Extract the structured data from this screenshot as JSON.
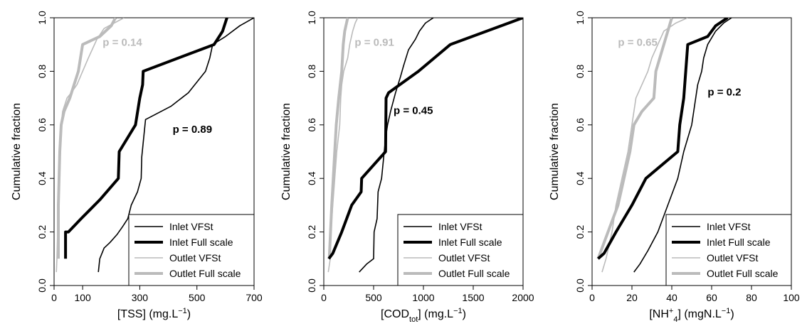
{
  "chart_data": [
    {
      "type": "line",
      "xlabel": "[TSS] (mg.L",
      "xlabel_sup": "−1",
      "xlabel_close": ")",
      "ylabel": "Cumulative fraction",
      "xlim": [
        0,
        700
      ],
      "ylim": [
        0,
        1
      ],
      "xticks": [
        "0",
        "100",
        "300",
        "500",
        "700"
      ],
      "xtick_values": [
        0,
        100,
        300,
        500,
        700
      ],
      "yticks": [
        "0.0",
        "0.2",
        "0.4",
        "0.6",
        "0.8",
        "1.0"
      ],
      "ytick_values": [
        0,
        0.2,
        0.4,
        0.6,
        0.8,
        1.0
      ],
      "legend_position": "bottom-right",
      "series": [
        {
          "name": "Inlet VFSt",
          "color": "#000000",
          "style": "thin",
          "x": [
            155,
            160,
            175,
            195,
            220,
            240,
            258,
            270,
            292,
            305,
            307,
            320,
            410,
            470,
            530,
            545,
            555,
            600,
            650,
            700
          ],
          "y": [
            0.05,
            0.1,
            0.14,
            0.16,
            0.19,
            0.22,
            0.25,
            0.3,
            0.35,
            0.4,
            0.48,
            0.62,
            0.67,
            0.72,
            0.8,
            0.85,
            0.9,
            0.93,
            0.97,
            1.0
          ]
        },
        {
          "name": "Inlet Full scale",
          "color": "#000000",
          "style": "thick",
          "x": [
            40,
            40,
            50,
            95,
            160,
            225,
            228,
            285,
            300,
            310,
            312,
            560,
            590,
            605
          ],
          "y": [
            0.1,
            0.2,
            0.2,
            0.25,
            0.32,
            0.4,
            0.5,
            0.6,
            0.7,
            0.75,
            0.8,
            0.9,
            0.95,
            1.0
          ]
        },
        {
          "name": "Outlet VFSt",
          "color": "#bbbbbb",
          "style": "thin",
          "x": [
            8,
            10,
            15,
            18,
            22,
            25,
            30,
            45,
            60,
            80,
            100,
            120,
            150,
            175,
            210,
            245
          ],
          "y": [
            0.05,
            0.1,
            0.3,
            0.45,
            0.55,
            0.6,
            0.65,
            0.7,
            0.72,
            0.75,
            0.8,
            0.85,
            0.92,
            0.96,
            0.98,
            1.0
          ]
        },
        {
          "name": "Outlet Full scale",
          "color": "#bbbbbb",
          "style": "thick",
          "x": [
            15,
            15,
            20,
            25,
            35,
            55,
            85,
            100,
            160,
            200,
            215
          ],
          "y": [
            0.1,
            0.3,
            0.5,
            0.6,
            0.65,
            0.7,
            0.8,
            0.9,
            0.93,
            0.97,
            1.0
          ]
        }
      ],
      "annotations": [
        {
          "text": "p = 0.14",
          "x": 170,
          "y": 0.895,
          "color": "#bbbbbb"
        },
        {
          "text": "p = 0.89",
          "x": 415,
          "y": 0.57,
          "color": "#000000"
        }
      ]
    },
    {
      "type": "line",
      "xlabel": "[COD",
      "xlabel_sub": "tot",
      "xlabel_close": "] (mg.L",
      "xlabel_sup": "−1",
      "xlabel_end": ")",
      "ylabel": "Cumulative fraction",
      "xlim": [
        0,
        2000
      ],
      "ylim": [
        0,
        1
      ],
      "xticks": [
        "0",
        "500",
        "1000",
        "1500",
        "2000"
      ],
      "xtick_values": [
        0,
        500,
        1000,
        1500,
        2000
      ],
      "yticks": [
        "0.0",
        "0.2",
        "0.4",
        "0.6",
        "0.8",
        "1.0"
      ],
      "ytick_values": [
        0,
        0.2,
        0.4,
        0.6,
        0.8,
        1.0
      ],
      "legend_position": "bottom-right",
      "series": [
        {
          "name": "Inlet VFSt",
          "color": "#000000",
          "style": "thin",
          "x": [
            355,
            430,
            500,
            505,
            535,
            545,
            580,
            620,
            640,
            670,
            720,
            770,
            800,
            850,
            920,
            960,
            1020,
            1100
          ],
          "y": [
            0.05,
            0.08,
            0.1,
            0.2,
            0.25,
            0.35,
            0.4,
            0.55,
            0.6,
            0.65,
            0.72,
            0.78,
            0.82,
            0.88,
            0.92,
            0.95,
            0.98,
            1.0
          ]
        },
        {
          "name": "Inlet Full scale",
          "color": "#000000",
          "style": "thick",
          "x": [
            50,
            90,
            180,
            280,
            375,
            380,
            620,
            625,
            650,
            950,
            1270,
            2000
          ],
          "y": [
            0.1,
            0.12,
            0.2,
            0.3,
            0.35,
            0.4,
            0.5,
            0.7,
            0.72,
            0.8,
            0.9,
            1.0
          ]
        },
        {
          "name": "Outlet VFSt",
          "color": "#bbbbbb",
          "style": "thin",
          "x": [
            45,
            65,
            70,
            90,
            110,
            130,
            160,
            170,
            180,
            200,
            240,
            260,
            290,
            315,
            340
          ],
          "y": [
            0.05,
            0.1,
            0.2,
            0.3,
            0.4,
            0.5,
            0.6,
            0.7,
            0.75,
            0.8,
            0.85,
            0.9,
            0.95,
            0.98,
            1.0
          ]
        },
        {
          "name": "Outlet Full scale",
          "color": "#bbbbbb",
          "style": "thick",
          "x": [
            55,
            80,
            110,
            125,
            150,
            180,
            195,
            210,
            240
          ],
          "y": [
            0.1,
            0.3,
            0.5,
            0.6,
            0.7,
            0.8,
            0.9,
            0.95,
            1.0
          ]
        }
      ],
      "annotations": [
        {
          "text": "p = 0.91",
          "x": 310,
          "y": 0.895,
          "color": "#bbbbbb"
        },
        {
          "text": "p = 0.45",
          "x": 700,
          "y": 0.64,
          "color": "#000000"
        }
      ]
    },
    {
      "type": "line",
      "xlabel": "[NH",
      "xlabel_sup": "+",
      "xlabel_sub": "4",
      "xlabel_close": "] (mgN.L",
      "xlabel_sup2": "−1",
      "xlabel_end": ")",
      "ylabel": "Cumulative fraction",
      "xlim": [
        0,
        100
      ],
      "ylim": [
        0,
        1
      ],
      "xticks": [
        "0",
        "20",
        "40",
        "60",
        "80",
        "100"
      ],
      "xtick_values": [
        0,
        20,
        40,
        60,
        80,
        100
      ],
      "yticks": [
        "0.0",
        "0.2",
        "0.4",
        "0.6",
        "0.8",
        "1.0"
      ],
      "ytick_values": [
        0,
        0.2,
        0.4,
        0.6,
        0.8,
        1.0
      ],
      "legend_position": "bottom-right",
      "series": [
        {
          "name": "Inlet VFSt",
          "color": "#000000",
          "style": "thin",
          "x": [
            21,
            24,
            28,
            33,
            38,
            43,
            46,
            48,
            50,
            52,
            53,
            55,
            56,
            58,
            62,
            66,
            70
          ],
          "y": [
            0.05,
            0.08,
            0.13,
            0.2,
            0.3,
            0.4,
            0.5,
            0.55,
            0.6,
            0.7,
            0.75,
            0.8,
            0.85,
            0.9,
            0.95,
            0.98,
            1.0
          ]
        },
        {
          "name": "Inlet Full scale",
          "color": "#000000",
          "style": "thick",
          "x": [
            3,
            6,
            12,
            20,
            27,
            35,
            43,
            44,
            46,
            47,
            48,
            58,
            62,
            68
          ],
          "y": [
            0.1,
            0.12,
            0.2,
            0.3,
            0.4,
            0.45,
            0.5,
            0.6,
            0.7,
            0.8,
            0.9,
            0.93,
            0.97,
            1.0
          ]
        },
        {
          "name": "Outlet VFSt",
          "color": "#bbbbbb",
          "style": "thin",
          "x": [
            5,
            7,
            10,
            12,
            15,
            18,
            20,
            22,
            25,
            28,
            30,
            33,
            36,
            40,
            42,
            48
          ],
          "y": [
            0.05,
            0.1,
            0.2,
            0.3,
            0.4,
            0.5,
            0.6,
            0.7,
            0.75,
            0.8,
            0.85,
            0.9,
            0.95,
            0.97,
            0.98,
            1.0
          ]
        },
        {
          "name": "Outlet Full scale",
          "color": "#bbbbbb",
          "style": "thick",
          "x": [
            3,
            8,
            13,
            16,
            19,
            21,
            25,
            31,
            32,
            36,
            38,
            40
          ],
          "y": [
            0.1,
            0.2,
            0.3,
            0.4,
            0.5,
            0.6,
            0.65,
            0.7,
            0.8,
            0.9,
            0.95,
            1.0
          ]
        }
      ],
      "annotations": [
        {
          "text": "p = 0.65",
          "x": 13,
          "y": 0.895,
          "color": "#bbbbbb"
        },
        {
          "text": "p = 0.2",
          "x": 58,
          "y": 0.71,
          "color": "#000000"
        }
      ]
    }
  ]
}
